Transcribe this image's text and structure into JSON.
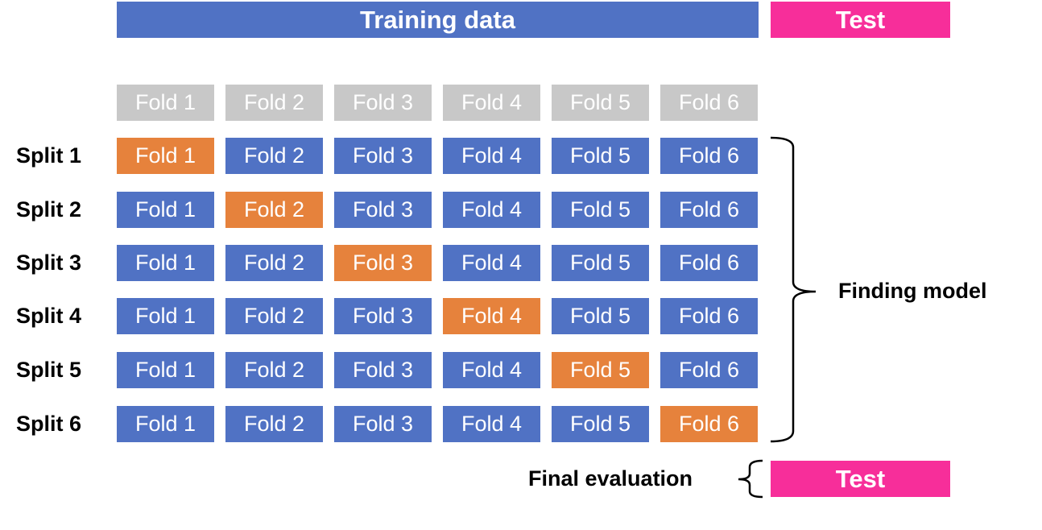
{
  "colors": {
    "training": "#5072c4",
    "test": "#f72e9a",
    "header_fold": "#c8c8c8",
    "validation_fold": "#e6823c",
    "training_fold": "#5072c4",
    "text_dark": "#000000"
  },
  "top": {
    "training_label": "Training data",
    "test_label": "Test"
  },
  "folds_header": [
    "Fold 1",
    "Fold 2",
    "Fold 3",
    "Fold 4",
    "Fold 5",
    "Fold 6"
  ],
  "splits": [
    {
      "label": "Split 1",
      "folds": [
        "Fold 1",
        "Fold 2",
        "Fold 3",
        "Fold 4",
        "Fold 5",
        "Fold 6"
      ],
      "validation_fold": 1
    },
    {
      "label": "Split 2",
      "folds": [
        "Fold 1",
        "Fold 2",
        "Fold 3",
        "Fold 4",
        "Fold 5",
        "Fold 6"
      ],
      "validation_fold": 2
    },
    {
      "label": "Split 3",
      "folds": [
        "Fold 1",
        "Fold 2",
        "Fold 3",
        "Fold 4",
        "Fold 5",
        "Fold 6"
      ],
      "validation_fold": 3
    },
    {
      "label": "Split 4",
      "folds": [
        "Fold 1",
        "Fold 2",
        "Fold 3",
        "Fold 4",
        "Fold 5",
        "Fold 6"
      ],
      "validation_fold": 4
    },
    {
      "label": "Split 5",
      "folds": [
        "Fold 1",
        "Fold 2",
        "Fold 3",
        "Fold 4",
        "Fold 5",
        "Fold 6"
      ],
      "validation_fold": 5
    },
    {
      "label": "Split 6",
      "folds": [
        "Fold 1",
        "Fold 2",
        "Fold 3",
        "Fold 4",
        "Fold 5",
        "Fold 6"
      ],
      "validation_fold": 6
    }
  ],
  "finding_model_label": "Finding model",
  "final": {
    "label": "Final evaluation",
    "test_label": "Test"
  }
}
